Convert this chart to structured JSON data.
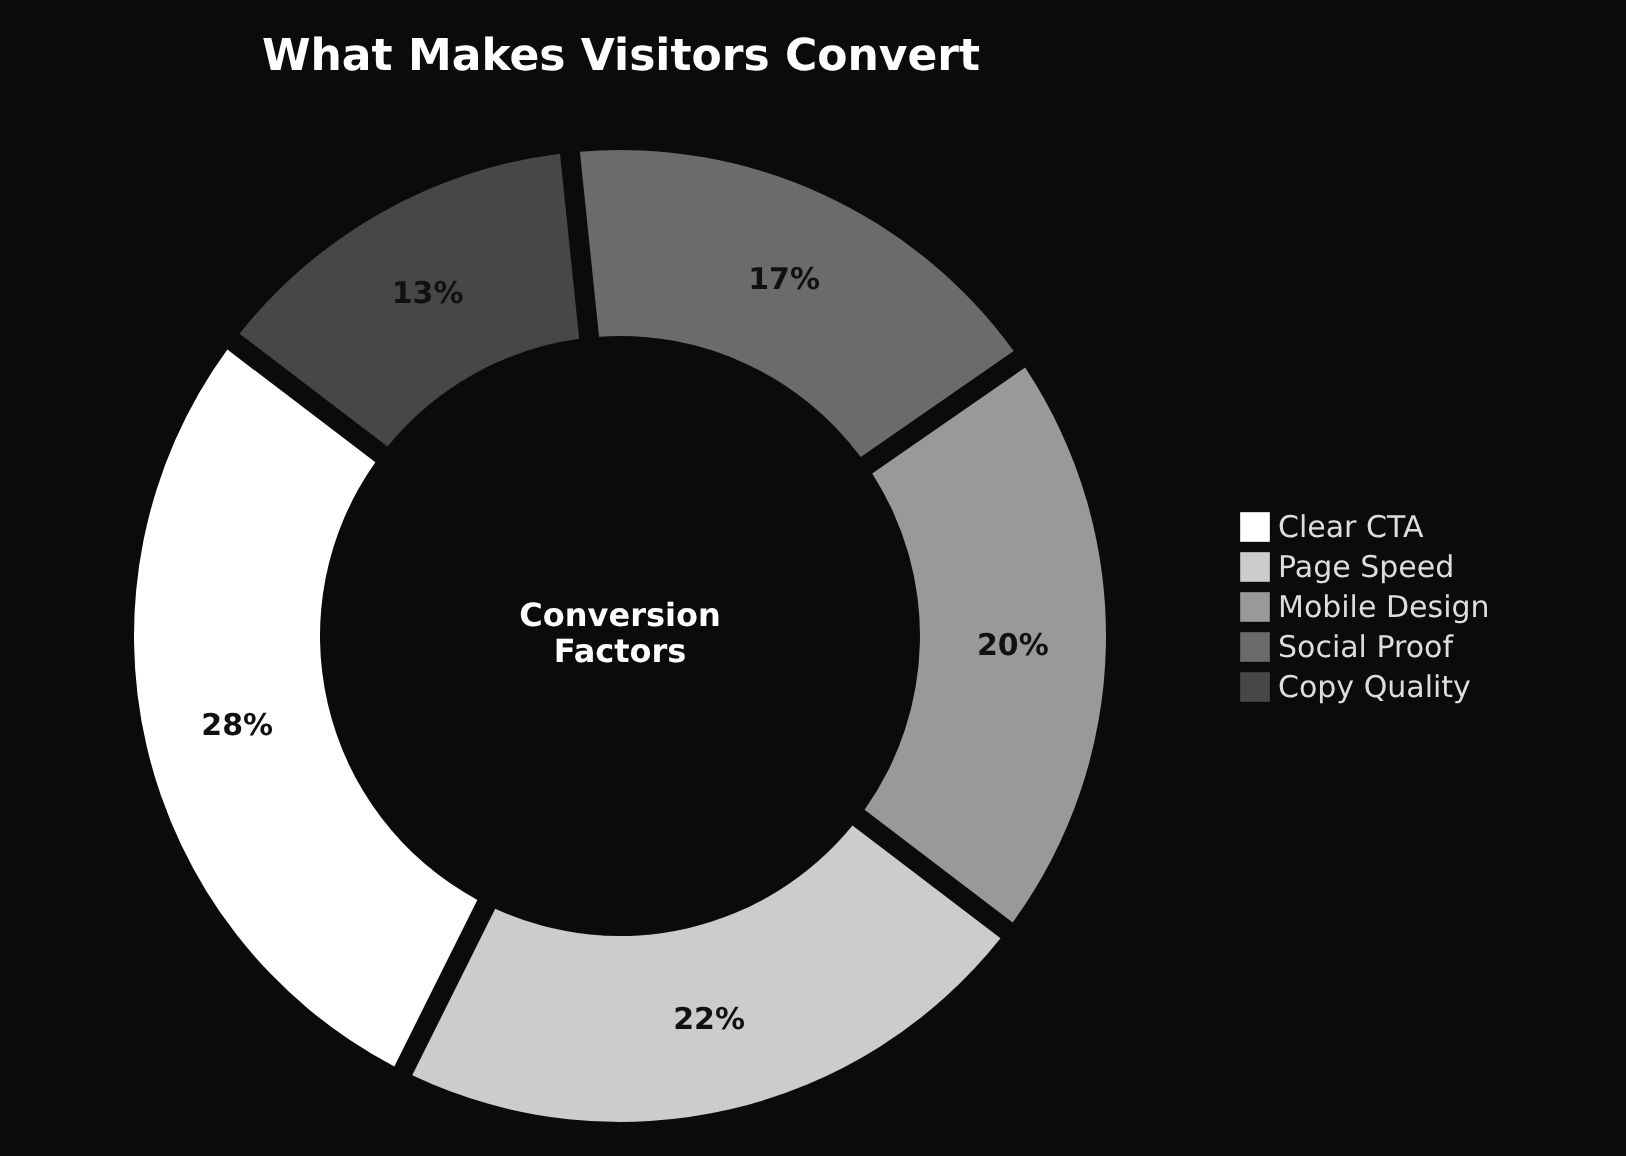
{
  "chart_data": {
    "type": "donut",
    "title": "What Makes Visitors Convert",
    "categories": [
      "Clear CTA",
      "Page Speed",
      "Mobile Design",
      "Social Proof",
      "Copy Quality"
    ],
    "values": [
      28,
      22,
      20,
      17,
      13
    ],
    "colors": [
      "#ffffff",
      "#cccccc",
      "#999999",
      "#6b6b6b",
      "#474747"
    ],
    "value_labels": [
      "28%",
      "22%",
      "20%",
      "17%",
      "13%"
    ],
    "annotations": [
      "Conversion\nFactors"
    ],
    "legend": "right"
  }
}
